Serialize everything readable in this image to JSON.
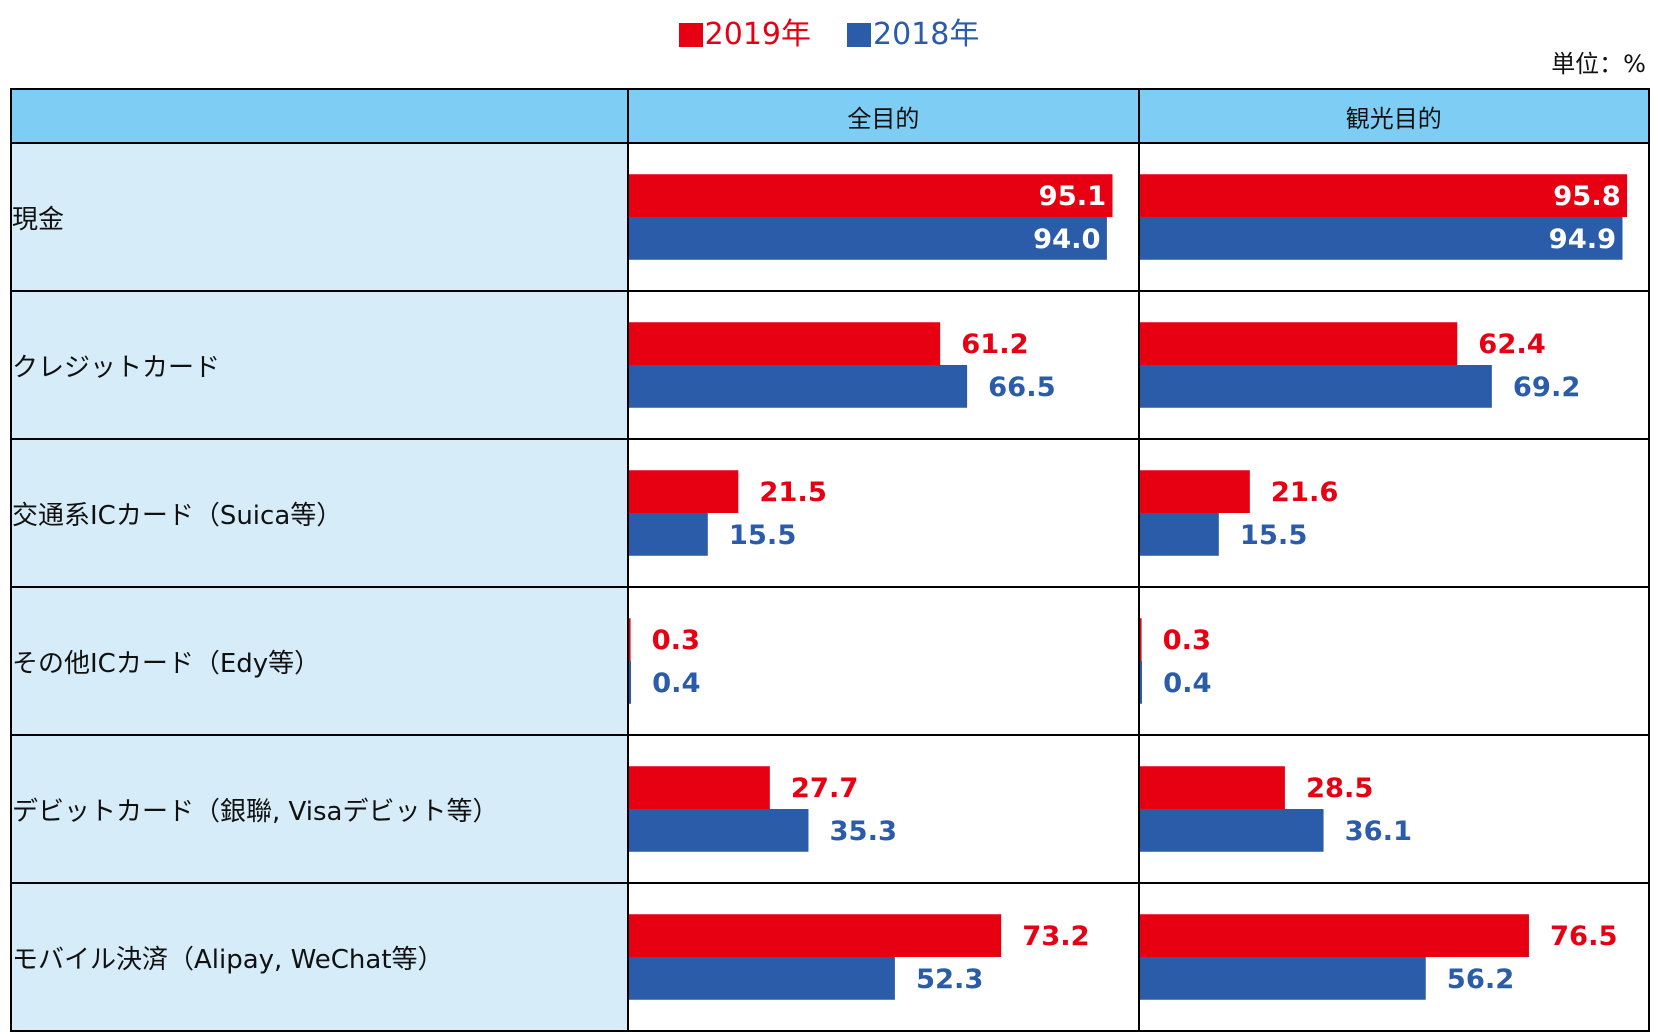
{
  "legend": [
    {
      "label": "2019年",
      "color": "#e60012"
    },
    {
      "label": "2018年",
      "color": "#2a5caa"
    }
  ],
  "unit_label": "単位：%",
  "chart_data": {
    "type": "bar",
    "orientation": "horizontal",
    "xlim": [
      0,
      100
    ],
    "columns": [
      "全目的",
      "観光目的"
    ],
    "categories": [
      "現金",
      "クレジットカード",
      "交通系ICカード（Suica等）",
      "その他ICカード（Edy等）",
      "デビットカード（銀聯, Visaデビット等）",
      "モバイル決済（Alipay, WeChat等）"
    ],
    "series": [
      {
        "name": "2019年",
        "color": "#e60012",
        "values": {
          "全目的": [
            95.1,
            61.2,
            21.5,
            0.3,
            27.7,
            73.2
          ],
          "観光目的": [
            95.8,
            62.4,
            21.6,
            0.3,
            28.5,
            76.5
          ]
        }
      },
      {
        "name": "2018年",
        "color": "#2a5caa",
        "values": {
          "全目的": [
            94.0,
            66.5,
            15.5,
            0.4,
            35.3,
            52.3
          ],
          "観光目的": [
            94.9,
            69.2,
            15.5,
            0.4,
            36.1,
            56.2
          ]
        }
      }
    ]
  }
}
